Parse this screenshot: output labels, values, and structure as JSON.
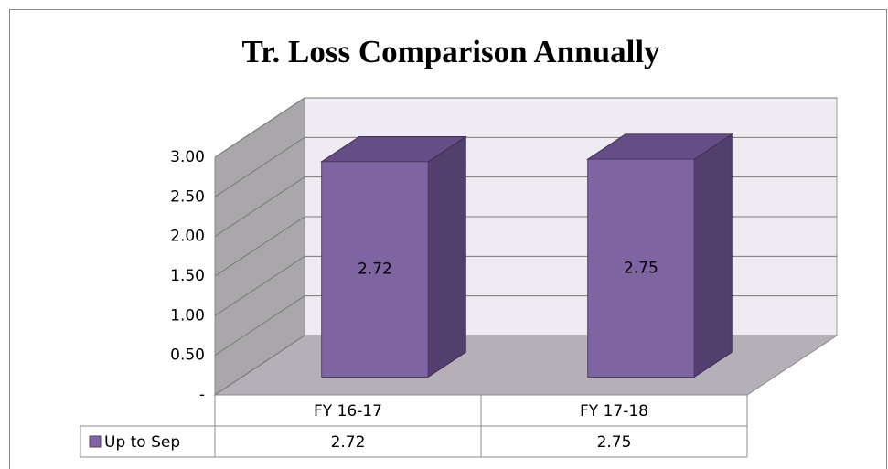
{
  "chart_data": {
    "type": "bar3d",
    "title": "Tr. Loss Comparison Annually",
    "categories": [
      "FY 16-17",
      "FY 17-18"
    ],
    "series": [
      {
        "name": "Up to Sep",
        "color": "#7f64a2",
        "values": [
          2.72,
          2.75
        ]
      }
    ],
    "ylim": [
      0,
      3
    ],
    "yticks": [
      {
        "value": 0,
        "label": "-"
      },
      {
        "value": 0.5,
        "label": "0.50"
      },
      {
        "value": 1,
        "label": "1.00"
      },
      {
        "value": 1.5,
        "label": "1.50"
      },
      {
        "value": 2,
        "label": "2.00"
      },
      {
        "value": 2.5,
        "label": "2.50"
      },
      {
        "value": 3,
        "label": "3.00"
      }
    ],
    "grid": true,
    "data_table": true
  }
}
